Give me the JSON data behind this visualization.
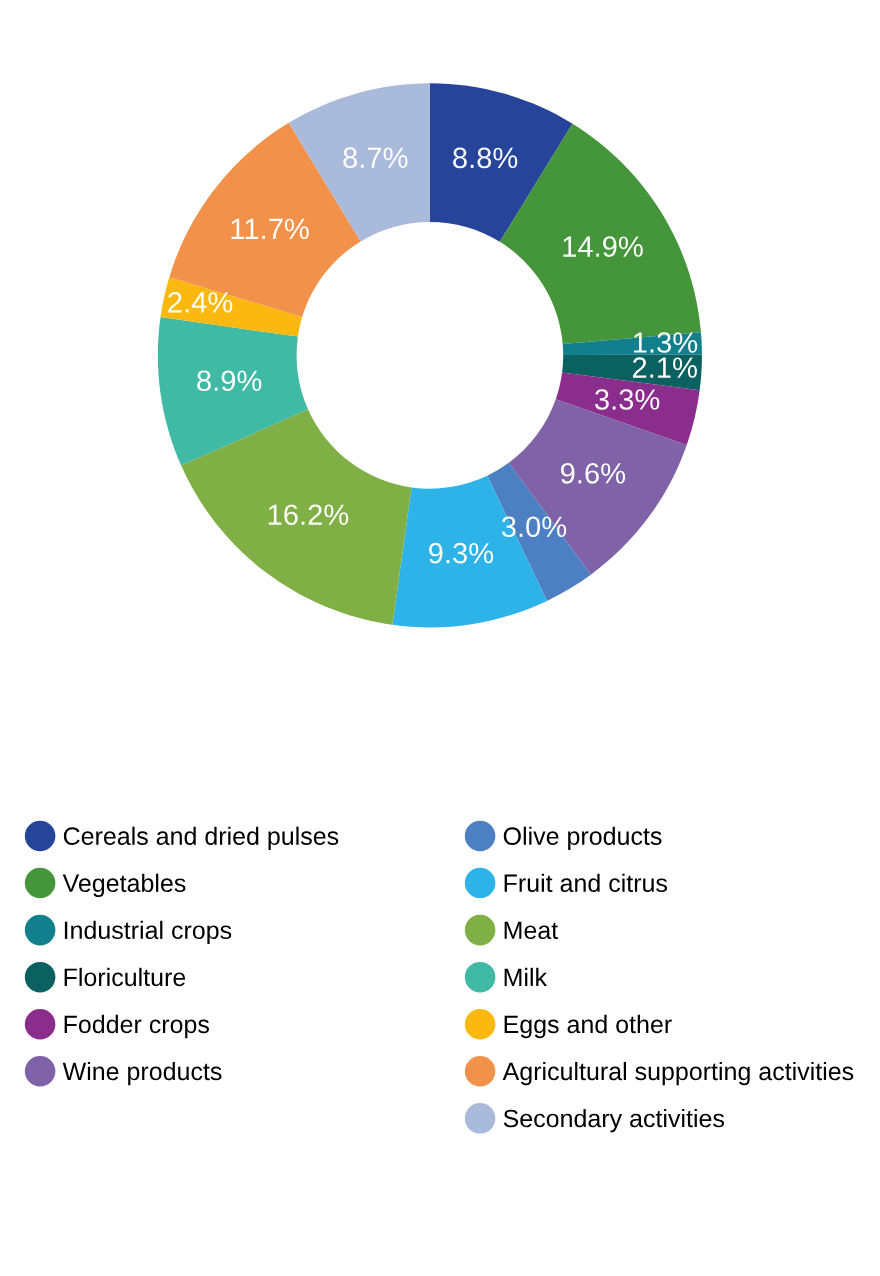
{
  "chart_data": {
    "type": "donut",
    "categories": [
      "Cereals and dried pulses",
      "Vegetables",
      "Industrial crops",
      "Floriculture",
      "Fodder crops",
      "Wine products",
      "Olive products",
      "Fruit and citrus",
      "Meat",
      "Milk",
      "Eggs and other",
      "Agricultural supporting activities",
      "Secondary activities"
    ],
    "values": [
      8.8,
      14.9,
      1.3,
      2.1,
      3.3,
      9.6,
      3.0,
      9.3,
      16.2,
      8.9,
      2.4,
      11.7,
      8.7
    ],
    "value_labels": [
      "8.8%",
      "14.9%",
      "1.3%",
      "2.1%",
      "3.3%",
      "9.6%",
      "3.0%",
      "9.3%",
      "16.2%",
      "8.9%",
      "2.4%",
      "11.7%",
      "8.7%"
    ],
    "colors": [
      "#25449a",
      "#45963a",
      "#117f8c",
      "#0b6160",
      "#8a2d8c",
      "#7f62a8",
      "#4d80c2",
      "#2db3e8",
      "#80b045",
      "#40b9a5",
      "#fbb910",
      "#f2914a",
      "#a9badb"
    ],
    "legend": "bottom"
  }
}
